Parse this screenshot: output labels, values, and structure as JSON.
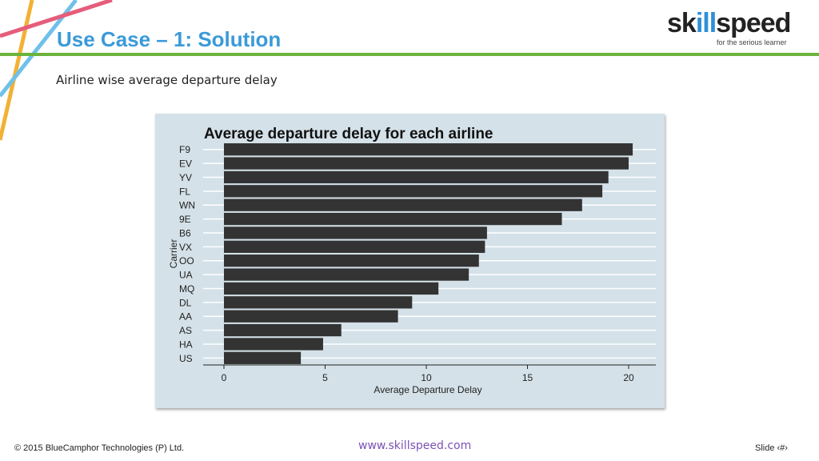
{
  "slide": {
    "title": "Use Case – 1: Solution",
    "subtitle": "Airline wise average departure delay"
  },
  "logo": {
    "word_left": "sk",
    "word_mid": "ill",
    "word_right": "speed",
    "tagline": "for the serious learner"
  },
  "footer": {
    "copyright": "© 2015 BlueCamphor Technologies (P) Ltd.",
    "website": "www.skillspeed.com",
    "slide_label": "Slide ‹#›"
  },
  "colors": {
    "title": "#3a9ad9",
    "rule_line": "#6bb33b",
    "chart_background": "#d4e1e8",
    "bar_fill": "#333333"
  },
  "chart_data": {
    "type": "bar",
    "orientation": "horizontal",
    "title": "Average departure delay for each airline",
    "xlabel": "Average Departure Delay",
    "ylabel": "Carrier",
    "categories": [
      "F9",
      "EV",
      "YV",
      "FL",
      "WN",
      "9E",
      "B6",
      "VX",
      "OO",
      "UA",
      "MQ",
      "DL",
      "AA",
      "AS",
      "HA",
      "US"
    ],
    "values": [
      20.2,
      20.0,
      19.0,
      18.7,
      17.7,
      16.7,
      13.0,
      12.9,
      12.6,
      12.1,
      10.6,
      9.3,
      8.6,
      5.8,
      4.9,
      3.8
    ],
    "xlim": [
      0,
      21.2
    ],
    "xticks": [
      0,
      5,
      10,
      15,
      20
    ],
    "grid": true,
    "legend": "none"
  }
}
